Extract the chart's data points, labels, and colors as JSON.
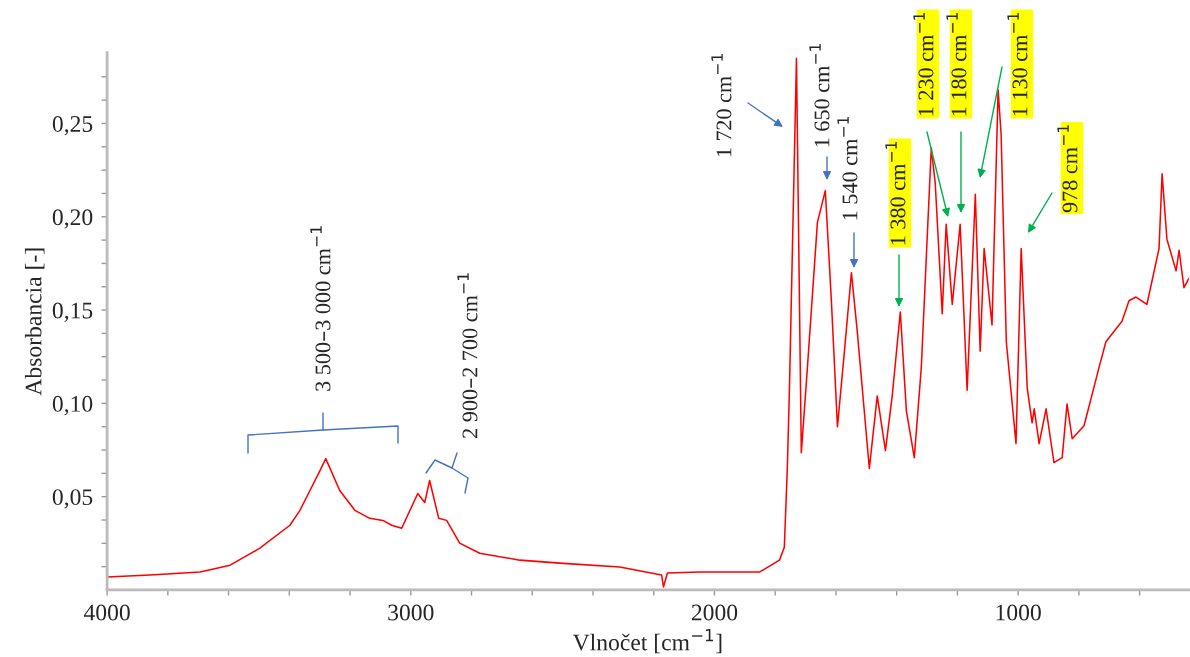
{
  "chart_data": {
    "type": "line",
    "xlabel": "Vlnočet [cm$^{−1}$]",
    "ylabel": "Absorbancia [-]",
    "xlim": [
      4000,
      438
    ],
    "ylim": [
      0,
      0.288
    ],
    "xticks": [
      4000,
      {
        "value": 3800,
        "label": null
      },
      {
        "value": 3600,
        "label": null
      },
      {
        "value": 3400,
        "label": null
      },
      {
        "value": 3200,
        "label": null
      },
      3000,
      {
        "value": 2800,
        "label": null
      },
      {
        "value": 2600,
        "label": null
      },
      {
        "value": 2400,
        "label": null
      },
      {
        "value": 2200,
        "label": null
      },
      2000,
      {
        "value": 1800,
        "label": null
      },
      {
        "value": 1600,
        "label": null
      },
      {
        "value": 1400,
        "label": null
      },
      {
        "value": 1200,
        "label": null
      },
      1000,
      {
        "value": 800,
        "label": null
      },
      {
        "value": 600,
        "label": null
      }
    ],
    "yticks": [
      {
        "value": 0.0125,
        "label": null
      },
      {
        "value": 0.025,
        "label": null
      },
      {
        "value": 0.0375,
        "label": null
      },
      {
        "value": 0.05,
        "label": "0,05"
      },
      {
        "value": 0.0625,
        "label": null
      },
      {
        "value": 0.075,
        "label": null
      },
      {
        "value": 0.0875,
        "label": null
      },
      {
        "value": 0.1,
        "label": "0,10"
      },
      {
        "value": 0.1125,
        "label": null
      },
      {
        "value": 0.125,
        "label": null
      },
      {
        "value": 0.1375,
        "label": null
      },
      {
        "value": 0.15,
        "label": "0,15"
      },
      {
        "value": 0.1625,
        "label": null
      },
      {
        "value": 0.175,
        "label": null
      },
      {
        "value": 0.1875,
        "label": null
      },
      {
        "value": 0.2,
        "label": "0,20"
      },
      {
        "value": 0.2125,
        "label": null
      },
      {
        "value": 0.225,
        "label": null
      },
      {
        "value": 0.2375,
        "label": null
      },
      {
        "value": 0.25,
        "label": "0,25"
      },
      {
        "value": 0.2625,
        "label": null
      },
      {
        "value": 0.275,
        "label": null
      }
    ],
    "grid": false,
    "legend": false,
    "marker": "none",
    "line_style": "solid",
    "series": [
      {
        "color": "#ff0000",
        "x": [
          4000,
          3859,
          3694,
          3595,
          3497,
          3398,
          3365,
          3332,
          3299,
          3280,
          3234,
          3184,
          3135,
          3092,
          3063,
          3030,
          2977,
          2954,
          2938,
          2908,
          2882,
          2839,
          2773,
          2641,
          2510,
          2312,
          2174,
          2168,
          2155,
          2049,
          1852,
          1786,
          1770,
          1760,
          1753,
          1730,
          1714,
          1694,
          1661,
          1635,
          1615,
          1595,
          1572,
          1549,
          1530,
          1490,
          1464,
          1437,
          1414,
          1388,
          1368,
          1342,
          1319,
          1286,
          1273,
          1250,
          1237,
          1217,
          1191,
          1168,
          1141,
          1125,
          1112,
          1086,
          1066,
          1056,
          1039,
          1007,
          990,
          970,
          954,
          947,
          931,
          908,
          882,
          855,
          839,
          822,
          783,
          734,
          711,
          658,
          635,
          612,
          576,
          536,
          526,
          510,
          480,
          470,
          454,
          438
        ],
        "values": [
          0.0069,
          0.008,
          0.0096,
          0.0133,
          0.0224,
          0.0347,
          0.0427,
          0.0533,
          0.064,
          0.0704,
          0.0533,
          0.0427,
          0.0384,
          0.0373,
          0.0347,
          0.0331,
          0.0517,
          0.0469,
          0.0587,
          0.0384,
          0.0373,
          0.0251,
          0.0197,
          0.016,
          0.0144,
          0.0123,
          0.008,
          0.0016,
          0.0091,
          0.0096,
          0.0096,
          0.016,
          0.0229,
          0.0656,
          0.1083,
          0.285,
          0.0736,
          0.119,
          0.197,
          0.214,
          0.155,
          0.0875,
          0.128,
          0.17,
          0.139,
          0.0651,
          0.104,
          0.0747,
          0.105,
          0.149,
          0.096,
          0.0709,
          0.119,
          0.237,
          0.218,
          0.148,
          0.196,
          0.153,
          0.196,
          0.107,
          0.212,
          0.128,
          0.183,
          0.142,
          0.268,
          0.244,
          0.133,
          0.0784,
          0.183,
          0.108,
          0.0896,
          0.0971,
          0.0784,
          0.0971,
          0.0683,
          0.0709,
          0.0997,
          0.0811,
          0.088,
          0.119,
          0.133,
          0.144,
          0.155,
          0.157,
          0.153,
          0.183,
          0.223,
          0.188,
          0.171,
          0.182,
          0.162,
          0.167
        ]
      }
    ],
    "annotations": [
      "3 500–3 000 cm$^{−1}$",
      "2 900–2 700 cm$^{−1}$",
      "1 720 cm$^{−1}$",
      "1 650 cm$^{−1}$",
      "1 540 cm$^{−1}$",
      "1 380 cm$^{−1}$",
      "1 230 cm$^{−1}$",
      "1 180 cm$^{−1}$",
      "1 130 cm$^{−1}$",
      "978 cm$^{−1}$"
    ]
  }
}
